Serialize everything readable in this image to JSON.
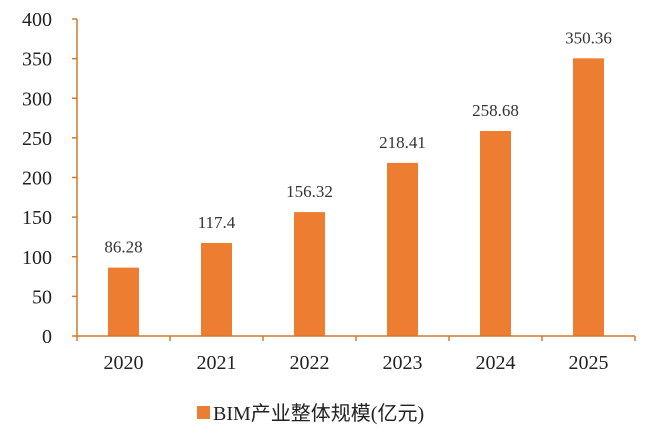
{
  "chart_data": {
    "type": "bar",
    "categories": [
      "2020",
      "2021",
      "2022",
      "2023",
      "2024",
      "2025"
    ],
    "series": [
      {
        "name": "BIM产业整体规模(亿元)",
        "values": [
          86.28,
          117.4,
          156.32,
          218.41,
          258.68,
          350.36
        ],
        "labels": [
          "86.28",
          "117.4",
          "156.32",
          "218.41",
          "258.68",
          "350.36"
        ],
        "color": "#ED7D31"
      }
    ],
    "ylim": [
      0,
      400
    ],
    "yticks": [
      0,
      50,
      100,
      150,
      200,
      250,
      300,
      350,
      400
    ],
    "ytick_labels": [
      "0",
      "50",
      "100",
      "150",
      "200",
      "250",
      "300",
      "350",
      "400"
    ],
    "title": "",
    "xlabel": "",
    "ylabel": "",
    "grid": false,
    "legend_position": "bottom",
    "colors": {
      "bar": "#ED7D31",
      "axis": "#D07A2E",
      "text": "#222222"
    }
  }
}
